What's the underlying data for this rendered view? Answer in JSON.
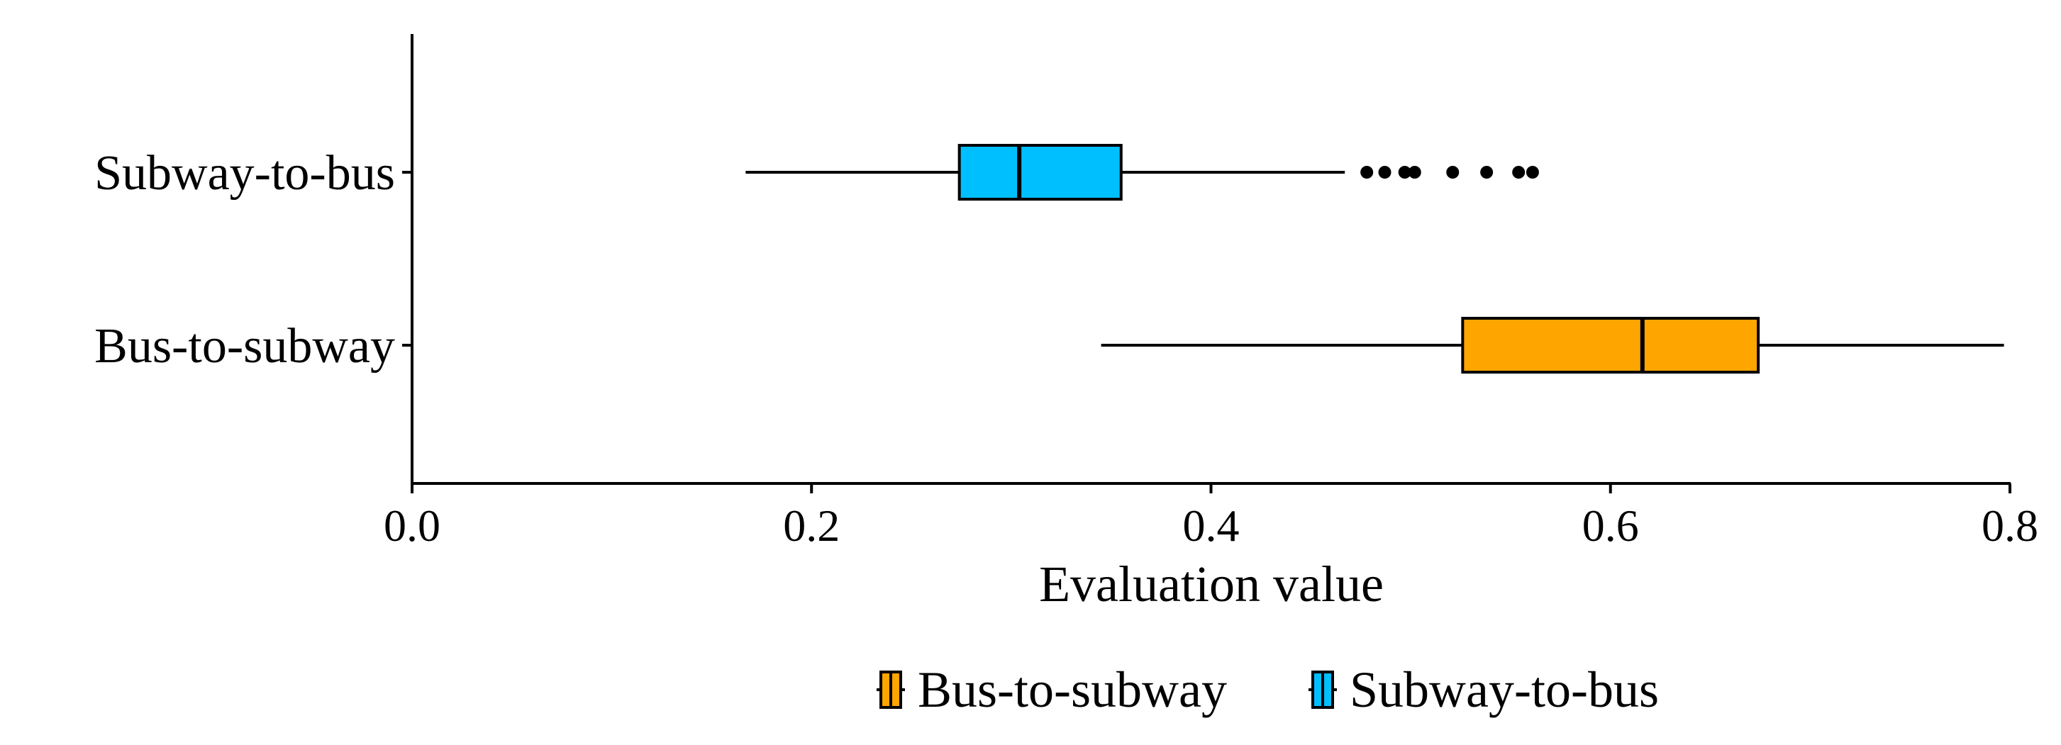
{
  "chart_data": {
    "type": "boxplot",
    "orientation": "horizontal",
    "title": "",
    "xlabel": "Evaluation value",
    "ylabel": "",
    "xlim": [
      0.0,
      0.8
    ],
    "x_ticks": [
      "0.0",
      "0.2",
      "0.4",
      "0.6",
      "0.8"
    ],
    "categories": [
      "Subway-to-bus",
      "Bus-to-subway"
    ],
    "grid": false,
    "legend": {
      "placement": "bottom",
      "entries": [
        "Bus-to-subway",
        "Subway-to-bus"
      ]
    },
    "series": [
      {
        "name": "Subway-to-bus",
        "color": "#00bfff",
        "whisker_low": 0.167,
        "q1": 0.274,
        "median": 0.304,
        "q3": 0.355,
        "whisker_high": 0.467,
        "outliers": [
          0.478,
          0.487,
          0.497,
          0.502,
          0.521,
          0.538,
          0.554,
          0.561
        ]
      },
      {
        "name": "Bus-to-subway",
        "color": "#ffa500",
        "whisker_low": 0.345,
        "q1": 0.526,
        "median": 0.616,
        "q3": 0.674,
        "whisker_high": 0.797,
        "outliers": []
      }
    ]
  }
}
